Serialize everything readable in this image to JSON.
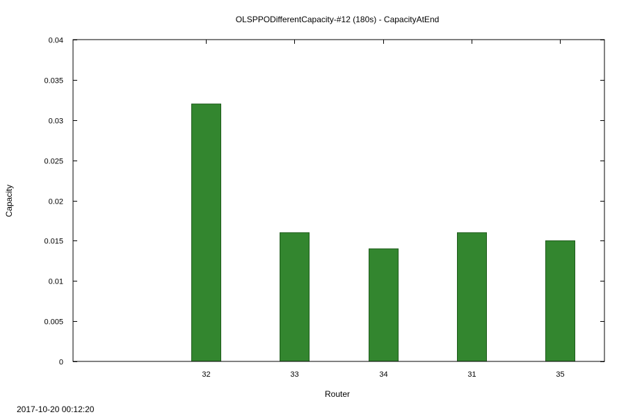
{
  "chart_data": {
    "type": "bar",
    "title": "OLSPPODifferentCapacity-#12 (180s) - CapacityAtEnd",
    "xlabel": "Router",
    "ylabel": "Capacity",
    "categories": [
      "32",
      "33",
      "34",
      "31",
      "35"
    ],
    "values": [
      0.032,
      0.016,
      0.014,
      0.016,
      0.015
    ],
    "ylim": [
      0,
      0.04
    ],
    "yticks": [
      0,
      0.005,
      0.01,
      0.015,
      0.02,
      0.025,
      0.03,
      0.035,
      0.04
    ],
    "ytick_labels": [
      "0",
      "0.005",
      "0.01",
      "0.015",
      "0.02",
      "0.025",
      "0.03",
      "0.035",
      "0.04"
    ],
    "bar_color": "#33862f",
    "bar_edge_color": "#1d5a1a",
    "grid": false,
    "legend": "none"
  },
  "footer": {
    "timestamp": "2017-10-20 00:12:20"
  }
}
